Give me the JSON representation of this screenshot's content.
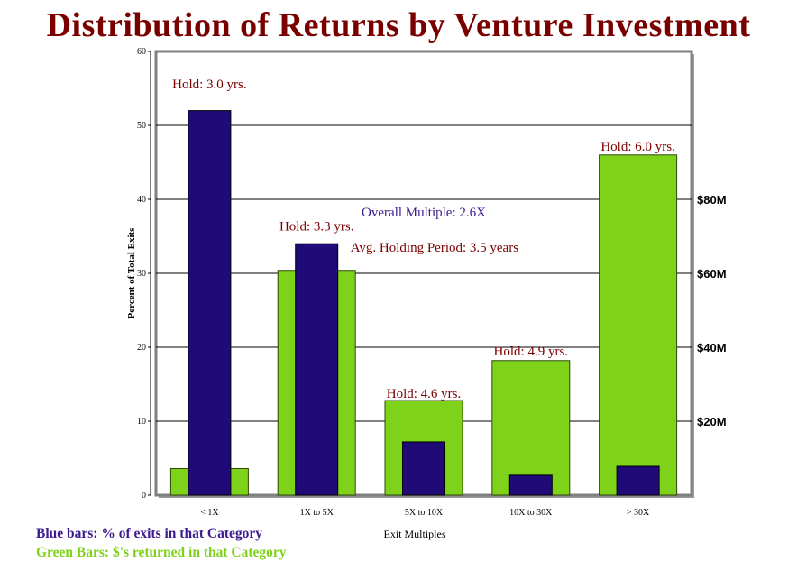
{
  "title": "Distribution of Returns by Venture Investment",
  "chart_data": {
    "type": "bar",
    "xlabel": "Exit Multiples",
    "ylabel": "Percent of Total Exits",
    "ylim": [
      0,
      60
    ],
    "yticks": [
      0,
      10,
      20,
      30,
      40,
      50,
      60
    ],
    "y2label": "",
    "y2ticks": [
      {
        "value": 10,
        "label": "$20M"
      },
      {
        "value": 20,
        "label": "$40M"
      },
      {
        "value": 30,
        "label": "$60M"
      },
      {
        "value": 40,
        "label": "$80M"
      }
    ],
    "grid": true,
    "categories": [
      "< 1X",
      "1X to 5X",
      "5X to 10X",
      "10X to 30X",
      "> 30X"
    ],
    "series": [
      {
        "name": "Green Bars",
        "color": "#7ed21a",
        "values": [
          3.6,
          30.4,
          12.8,
          18.2,
          46.0
        ]
      },
      {
        "name": "Blue bars",
        "color": "#1f0a78",
        "values": [
          52.0,
          34.0,
          7.2,
          2.7,
          3.9
        ]
      }
    ],
    "annotations": [
      {
        "text": "Hold: 3.0 yrs.",
        "category": 0,
        "value": 55.0,
        "color": "#7a0000"
      },
      {
        "text": "Hold: 3.3 yrs.",
        "category": 1,
        "value": 35.8,
        "color": "#7a0000"
      },
      {
        "text": "Hold: 4.6 yrs.",
        "category": 2,
        "value": 13.2,
        "color": "#7a0000"
      },
      {
        "text": "Hold: 4.9 yrs.",
        "category": 3,
        "value": 18.9,
        "color": "#7a0000"
      },
      {
        "text": "Hold: 6.0 yrs.",
        "category": 4,
        "value": 46.6,
        "color": "#7a0000"
      },
      {
        "text": "Overall Multiple: 2.6X",
        "category": 2.0,
        "value": 37.7,
        "color": "#3d1a8f"
      },
      {
        "text": "Avg. Holding Period: 3.5 years",
        "category": 2.1,
        "value": 32.9,
        "color": "#7a0000"
      }
    ]
  },
  "footer": {
    "blue_note": "Blue bars: % of exits in that Category",
    "green_note": "Green Bars: $'s returned in that Category"
  }
}
